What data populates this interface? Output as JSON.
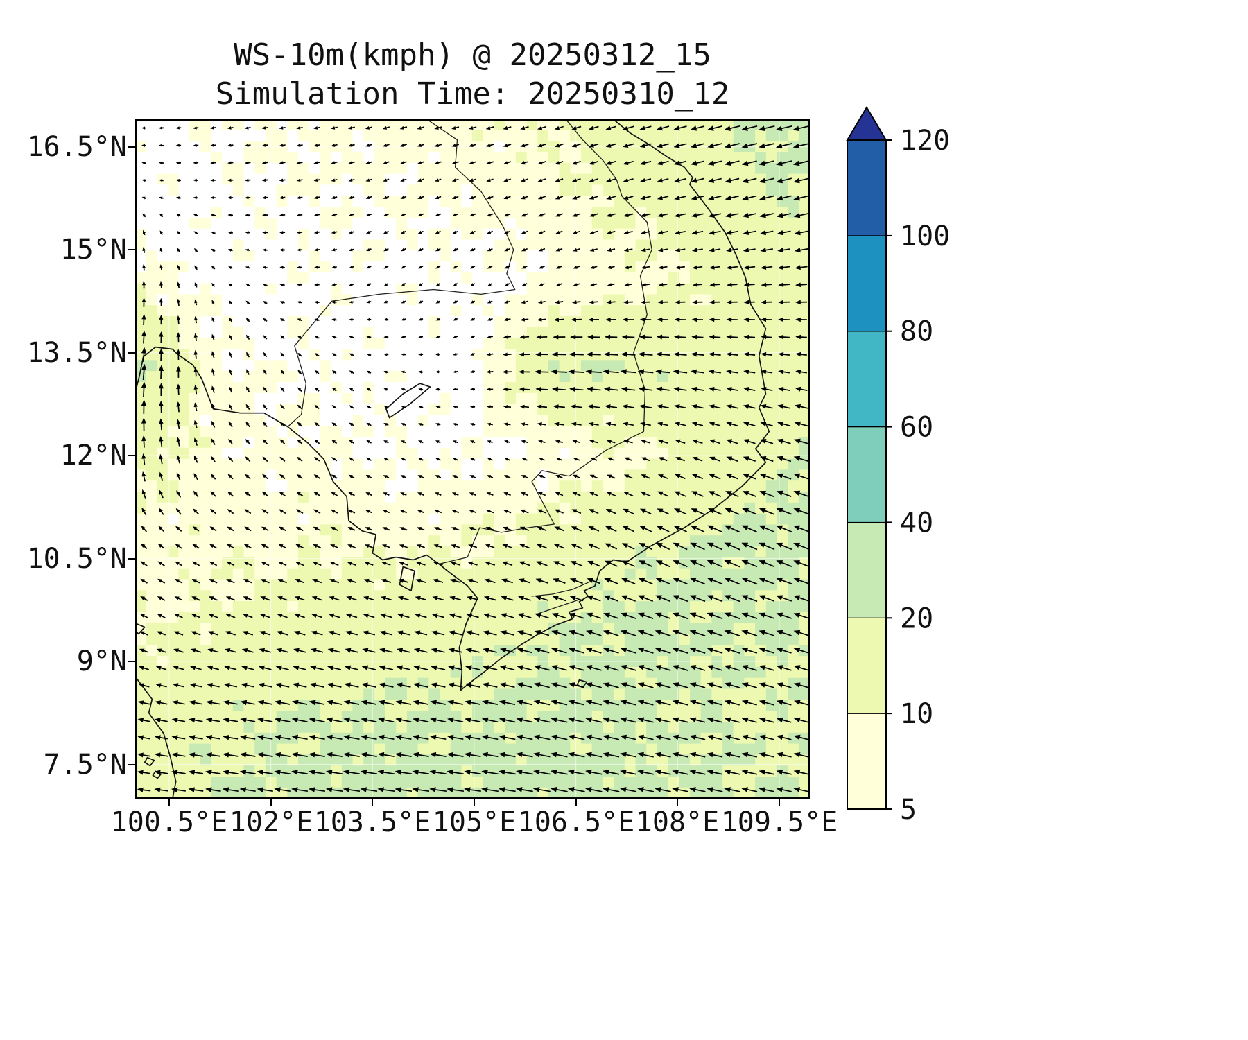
{
  "title": {
    "line1": "WS-10m(kmph) @ 20250312_15",
    "line2": "Simulation Time: 20250310_12"
  },
  "chart_data": {
    "type": "map-quiver",
    "variable": "WS-10m",
    "units": "kmph",
    "valid_time": "20250312_15",
    "simulation_time": "20250310_12",
    "x_axis": {
      "range": [
        100.0,
        109.95
      ],
      "ticks": [
        100.5,
        102,
        103.5,
        105,
        106.5,
        108,
        109.5
      ],
      "tick_labels": [
        "100.5°E",
        "102°E",
        "103.5°E",
        "105°E",
        "106.5°E",
        "108°E",
        "109.5°E"
      ]
    },
    "y_axis": {
      "range": [
        7.0,
        16.9
      ],
      "ticks": [
        7.5,
        9,
        10.5,
        12,
        13.5,
        15,
        16.5
      ],
      "tick_labels": [
        "7.5°N",
        "9°N",
        "10.5°N",
        "12°N",
        "13.5°N",
        "15°N",
        "16.5°N"
      ]
    },
    "colorbar": {
      "levels": [
        5,
        10,
        20,
        40,
        60,
        80,
        100,
        120
      ],
      "tick_labels": [
        "5",
        "10",
        "20",
        "40",
        "60",
        "80",
        "100",
        "120"
      ],
      "colors": [
        "#ffffd9",
        "#edf8b1",
        "#c7e9b4",
        "#7fcdbb",
        "#41b6c4",
        "#1d91c0",
        "#225ea8"
      ],
      "over_color": "#253494",
      "under_color": "#ffffff"
    },
    "wind_grid": {
      "comment": "u eastward, v northward (kmph); rows ordered by ascending latitude",
      "lons": [
        100,
        101.25,
        102.5,
        103.75,
        105,
        106.25,
        107.5,
        108.75,
        110
      ],
      "lats": [
        7,
        8.25,
        9.5,
        10.75,
        12,
        13.25,
        14.5,
        15.75,
        17
      ],
      "u": [
        [
          -16,
          -20,
          -21,
          -22,
          -22,
          -22,
          -21,
          -20,
          -19
        ],
        [
          -14,
          -18,
          -20,
          -20,
          -20,
          -21,
          -20,
          -19,
          -18
        ],
        [
          -8,
          -11,
          -13,
          -15,
          -16,
          -19,
          -20,
          -20,
          -19
        ],
        [
          -6,
          -7,
          -8,
          -8,
          -9,
          -12,
          -16,
          -20,
          -20
        ],
        [
          -1,
          -4,
          -5,
          -4,
          -4,
          -5,
          -8,
          -13,
          -20
        ],
        [
          2,
          -2,
          -3,
          -3,
          -3,
          -21,
          -20,
          -14,
          -13
        ],
        [
          0,
          -2,
          -4,
          -3,
          -3,
          -5,
          -8,
          -12,
          -14
        ],
        [
          -2,
          -4,
          -5,
          -5,
          -6,
          -8,
          -12,
          -17,
          -20
        ],
        [
          -3,
          -5,
          -6,
          -7,
          -8,
          -10,
          -14,
          -20,
          -22
        ]
      ],
      "v": [
        [
          2,
          3,
          3,
          3,
          3,
          4,
          4,
          4,
          4
        ],
        [
          3,
          3,
          4,
          4,
          4,
          5,
          5,
          5,
          5
        ],
        [
          4,
          4,
          4,
          4,
          4,
          6,
          7,
          7,
          6
        ],
        [
          5,
          4,
          4,
          3,
          3,
          5,
          8,
          9,
          8
        ],
        [
          14,
          5,
          4,
          2,
          2,
          2,
          3,
          5,
          6
        ],
        [
          22,
          6,
          3,
          1,
          -1,
          1,
          2,
          2,
          2
        ],
        [
          8,
          2,
          0,
          -2,
          -2,
          -2,
          -1,
          -1,
          -1
        ],
        [
          1,
          0,
          -1,
          -2,
          -2,
          -3,
          -3,
          -4,
          -5
        ],
        [
          0,
          -1,
          -1,
          -2,
          -2,
          -3,
          -4,
          -5,
          -5
        ]
      ]
    },
    "coastlines": [
      [
        [
          107.05,
          16.9
        ],
        [
          107.3,
          16.7
        ],
        [
          107.55,
          16.55
        ],
        [
          107.85,
          16.35
        ],
        [
          108.1,
          16.2
        ],
        [
          108.22,
          16.05
        ],
        [
          108.18,
          15.95
        ],
        [
          108.45,
          15.6
        ],
        [
          108.7,
          15.25
        ],
        [
          108.85,
          14.95
        ],
        [
          109.0,
          14.6
        ],
        [
          109.08,
          14.2
        ],
        [
          109.3,
          13.85
        ],
        [
          109.2,
          13.45
        ],
        [
          109.3,
          12.9
        ],
        [
          109.2,
          12.7
        ],
        [
          109.35,
          12.35
        ],
        [
          109.15,
          12.1
        ],
        [
          109.3,
          11.9
        ],
        [
          108.95,
          11.55
        ],
        [
          108.5,
          11.2
        ],
        [
          108.1,
          10.95
        ],
        [
          107.6,
          10.68
        ],
        [
          107.25,
          10.45
        ],
        [
          107.05,
          10.48
        ],
        [
          106.85,
          10.32
        ],
        [
          106.78,
          10.1
        ],
        [
          106.62,
          10.03
        ],
        [
          106.68,
          9.95
        ],
        [
          106.55,
          9.87
        ],
        [
          106.6,
          9.78
        ],
        [
          106.4,
          9.72
        ],
        [
          106.45,
          9.62
        ],
        [
          106.2,
          9.53
        ],
        [
          105.95,
          9.4
        ],
        [
          105.7,
          9.25
        ],
        [
          105.4,
          9.05
        ],
        [
          105.15,
          8.85
        ],
        [
          104.95,
          8.7
        ],
        [
          104.8,
          8.58
        ],
        [
          104.82,
          8.85
        ],
        [
          104.78,
          9.2
        ],
        [
          104.88,
          9.55
        ],
        [
          105.05,
          9.92
        ],
        [
          104.9,
          10.1
        ],
        [
          104.63,
          10.3
        ],
        [
          104.48,
          10.42
        ],
        [
          104.3,
          10.55
        ],
        [
          104.1,
          10.48
        ],
        [
          103.85,
          10.52
        ],
        [
          103.65,
          10.48
        ],
        [
          103.5,
          10.58
        ],
        [
          103.55,
          10.85
        ],
        [
          103.35,
          10.9
        ],
        [
          103.15,
          11.05
        ],
        [
          103.12,
          11.4
        ],
        [
          102.92,
          11.62
        ],
        [
          102.78,
          11.95
        ],
        [
          102.55,
          12.18
        ],
        [
          102.25,
          12.42
        ],
        [
          101.9,
          12.62
        ],
        [
          101.55,
          12.62
        ],
        [
          101.15,
          12.68
        ],
        [
          100.98,
          13.12
        ],
        [
          100.85,
          13.32
        ],
        [
          100.62,
          13.48
        ],
        [
          100.55,
          13.55
        ],
        [
          100.3,
          13.58
        ],
        [
          100.12,
          13.44
        ],
        [
          100.06,
          13.15
        ],
        [
          100.0,
          12.92
        ]
      ],
      [
        [
          100.0,
          8.78
        ],
        [
          100.25,
          8.45
        ],
        [
          100.2,
          8.25
        ],
        [
          100.42,
          7.95
        ],
        [
          100.52,
          7.6
        ],
        [
          100.6,
          7.25
        ],
        [
          100.55,
          7.0
        ]
      ],
      [
        [
          103.95,
          10.38
        ],
        [
          104.12,
          10.32
        ],
        [
          104.07,
          10.03
        ],
        [
          103.9,
          10.12
        ],
        [
          103.95,
          10.38
        ]
      ],
      [
        [
          106.55,
          8.73
        ],
        [
          106.66,
          8.7
        ],
        [
          106.6,
          8.62
        ],
        [
          106.52,
          8.66
        ],
        [
          106.55,
          8.73
        ]
      ],
      [
        [
          100.02,
          9.55
        ],
        [
          100.14,
          9.5
        ],
        [
          100.05,
          9.4
        ],
        [
          99.98,
          9.47
        ],
        [
          100.02,
          9.55
        ]
      ],
      [
        [
          100.18,
          7.6
        ],
        [
          100.28,
          7.56
        ],
        [
          100.22,
          7.48
        ],
        [
          100.14,
          7.53
        ],
        [
          100.18,
          7.6
        ]
      ],
      [
        [
          100.3,
          7.4
        ],
        [
          100.38,
          7.36
        ],
        [
          100.33,
          7.3
        ],
        [
          100.26,
          7.34
        ],
        [
          100.3,
          7.4
        ]
      ],
      [
        [
          103.75,
          12.55
        ],
        [
          104.05,
          12.75
        ],
        [
          104.35,
          13.0
        ],
        [
          104.2,
          13.05
        ],
        [
          103.95,
          12.9
        ],
        [
          103.7,
          12.68
        ],
        [
          103.75,
          12.55
        ]
      ]
    ],
    "borders": [
      [
        [
          104.3,
          16.9
        ],
        [
          104.75,
          16.6
        ],
        [
          104.72,
          16.2
        ],
        [
          105.1,
          15.85
        ],
        [
          105.42,
          15.35
        ],
        [
          105.58,
          15.0
        ],
        [
          105.48,
          14.65
        ],
        [
          105.6,
          14.42
        ]
      ],
      [
        [
          105.6,
          14.42
        ],
        [
          105.1,
          14.35
        ],
        [
          104.4,
          14.42
        ],
        [
          103.6,
          14.35
        ],
        [
          102.9,
          14.25
        ],
        [
          102.35,
          13.6
        ],
        [
          102.52,
          13.05
        ],
        [
          102.45,
          12.6
        ],
        [
          102.25,
          12.42
        ]
      ],
      [
        [
          106.35,
          16.9
        ],
        [
          106.6,
          16.6
        ],
        [
          106.9,
          16.3
        ],
        [
          107.1,
          16.02
        ],
        [
          107.18,
          15.78
        ],
        [
          107.55,
          15.4
        ],
        [
          107.62,
          15.0
        ],
        [
          107.45,
          14.62
        ],
        [
          107.55,
          14.05
        ]
      ],
      [
        [
          107.55,
          14.05
        ],
        [
          107.35,
          13.5
        ],
        [
          107.52,
          12.95
        ],
        [
          107.5,
          12.35
        ],
        [
          106.95,
          12.08
        ],
        [
          106.4,
          11.7
        ],
        [
          106.0,
          11.78
        ],
        [
          105.85,
          11.62
        ],
        [
          106.18,
          11.0
        ],
        [
          105.8,
          10.95
        ],
        [
          105.4,
          10.88
        ],
        [
          105.08,
          10.95
        ],
        [
          104.9,
          10.52
        ],
        [
          104.48,
          10.42
        ]
      ],
      [
        [
          106.75,
          10.18
        ],
        [
          106.45,
          10.05
        ],
        [
          106.15,
          9.98
        ],
        [
          105.85,
          9.95
        ]
      ],
      [
        [
          106.55,
          9.9
        ],
        [
          106.25,
          9.8
        ],
        [
          105.95,
          9.7
        ]
      ]
    ]
  },
  "style": {
    "arrow_color": "#000000",
    "coast_color": "#141414",
    "border_color": "#222222",
    "grid_color": "#ffffff",
    "frame_color": "#000000",
    "label_color": "#111111",
    "background": "#ffffff"
  }
}
